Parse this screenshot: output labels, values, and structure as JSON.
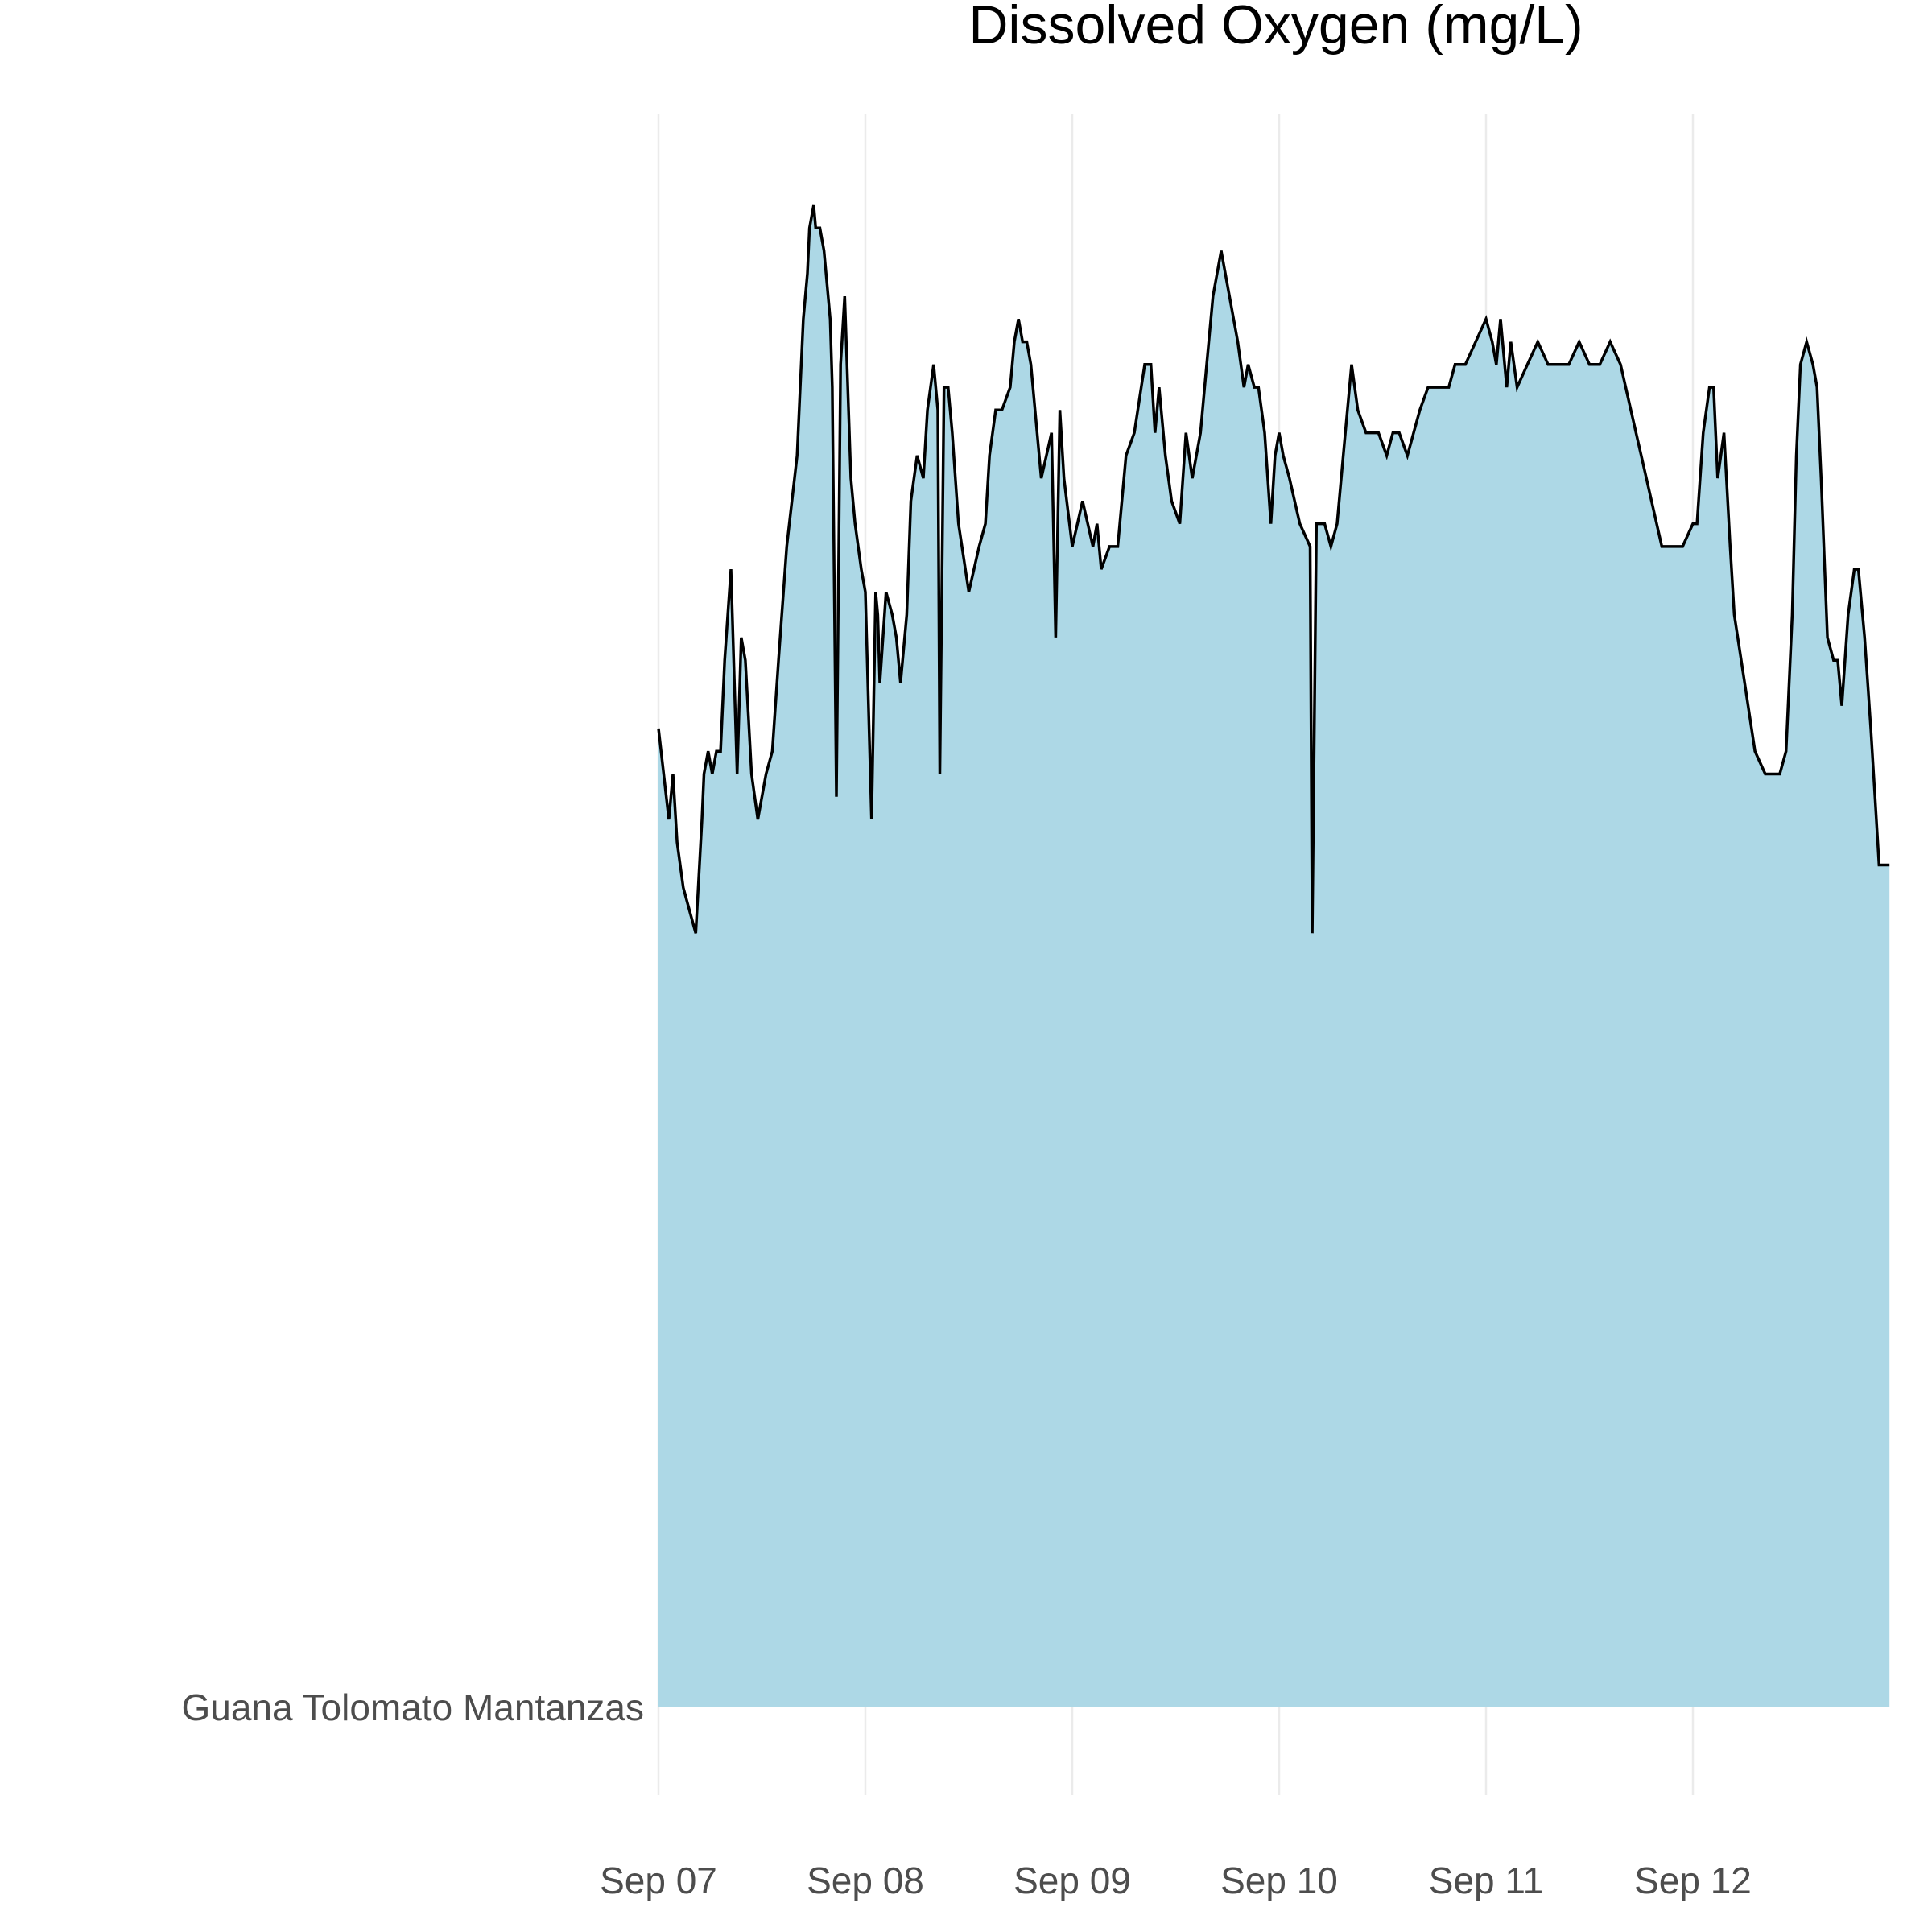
{
  "chart_data": {
    "type": "area",
    "title": "Dissolved Oxygen (mg/L)",
    "subtitle": "",
    "xlabel": "",
    "ylabel": "",
    "y_category_label": "Guana Tolomato Mantanzas",
    "x_tick_labels": [
      "Sep 07",
      "Sep 08",
      "Sep 09",
      "Sep 10",
      "Sep 11",
      "Sep 12"
    ],
    "x_units": "days",
    "xlim_days": [
      0,
      5.95
    ],
    "y_scale": "relative ridgeline (no y-axis values printed)",
    "ylim": [
      0,
      7
    ],
    "grid": "vertical major gridlines only",
    "fill_color": "#add8e6",
    "line_color": "#000000",
    "grid_color": "#ebebeb",
    "title_color": "#000000",
    "tick_label_color": "#4d4d4d",
    "series": [
      {
        "x": [
          0.0,
          0.05,
          0.07,
          0.09,
          0.12,
          0.15,
          0.18,
          0.21,
          0.22,
          0.24,
          0.26,
          0.28,
          0.3,
          0.32,
          0.35,
          0.38,
          0.4,
          0.42,
          0.45,
          0.48,
          0.5,
          0.52,
          0.55,
          0.58,
          0.62,
          0.67,
          0.7,
          0.72,
          0.73,
          0.75,
          0.76,
          0.78,
          0.8,
          0.83,
          0.84,
          0.86,
          0.88,
          0.9,
          0.93,
          0.95,
          0.98,
          1.0,
          1.03,
          1.05,
          1.06,
          1.07,
          1.1,
          1.13,
          1.15,
          1.17,
          1.2,
          1.22,
          1.25,
          1.28,
          1.3,
          1.33,
          1.35,
          1.36,
          1.38,
          1.4,
          1.42,
          1.45,
          1.5,
          1.55,
          1.58,
          1.6,
          1.63,
          1.66,
          1.7,
          1.72,
          1.74,
          1.76,
          1.78,
          1.8,
          1.85,
          1.9,
          1.92,
          1.94,
          1.96,
          2.0,
          2.05,
          2.1,
          2.12,
          2.14,
          2.18,
          2.22,
          2.26,
          2.3,
          2.35,
          2.38,
          2.4,
          2.42,
          2.45,
          2.48,
          2.52,
          2.55,
          2.58,
          2.62,
          2.65,
          2.68,
          2.72,
          2.76,
          2.8,
          2.83,
          2.85,
          2.88,
          2.9,
          2.93,
          2.96,
          2.98,
          3.0,
          3.02,
          3.05,
          3.1,
          3.15,
          3.16,
          3.18,
          3.22,
          3.25,
          3.28,
          3.32,
          3.35,
          3.38,
          3.42,
          3.48,
          3.52,
          3.55,
          3.58,
          3.62,
          3.68,
          3.72,
          3.78,
          3.82,
          3.85,
          3.9,
          4.0,
          4.03,
          4.05,
          4.07,
          4.1,
          4.12,
          4.15,
          4.2,
          4.25,
          4.3,
          4.35,
          4.4,
          4.45,
          4.5,
          4.55,
          4.6,
          4.65,
          4.7,
          4.75,
          4.8,
          4.85,
          4.9,
          4.95,
          5.0,
          5.02,
          5.05,
          5.08,
          5.1,
          5.12,
          5.15,
          5.18,
          5.2,
          5.25,
          5.3,
          5.35,
          5.4,
          5.42,
          5.45,
          5.48,
          5.5,
          5.52,
          5.55,
          5.58,
          5.6,
          5.62,
          5.65,
          5.68,
          5.7,
          5.72,
          5.75,
          5.78,
          5.8,
          5.83,
          5.86,
          5.88,
          5.9,
          5.95
        ],
        "y": [
          4.3,
          3.9,
          4.1,
          3.8,
          3.6,
          3.5,
          3.4,
          3.9,
          4.1,
          4.2,
          4.1,
          4.2,
          4.2,
          4.6,
          5.0,
          4.1,
          4.7,
          4.6,
          4.1,
          3.9,
          4.0,
          4.1,
          4.2,
          4.6,
          5.1,
          5.5,
          6.1,
          6.3,
          6.5,
          6.6,
          6.5,
          6.5,
          6.4,
          6.1,
          5.8,
          4.0,
          5.9,
          6.2,
          5.4,
          5.2,
          5.0,
          4.9,
          3.9,
          4.9,
          4.8,
          4.5,
          4.9,
          4.8,
          4.7,
          4.5,
          4.8,
          5.3,
          5.5,
          5.4,
          5.7,
          5.9,
          5.7,
          4.1,
          5.8,
          5.8,
          5.6,
          5.2,
          4.9,
          5.1,
          5.2,
          5.5,
          5.7,
          5.7,
          5.8,
          6.0,
          6.1,
          6.0,
          6.0,
          5.9,
          5.4,
          5.6,
          4.7,
          5.7,
          5.4,
          5.1,
          5.3,
          5.1,
          5.2,
          5.0,
          5.1,
          5.1,
          5.5,
          5.6,
          5.9,
          5.9,
          5.6,
          5.8,
          5.5,
          5.3,
          5.2,
          5.6,
          5.4,
          5.6,
          5.9,
          6.2,
          6.4,
          6.2,
          6.0,
          5.8,
          5.9,
          5.8,
          5.8,
          5.6,
          5.2,
          5.5,
          5.6,
          5.5,
          5.4,
          5.2,
          5.1,
          3.4,
          5.2,
          5.2,
          5.1,
          5.2,
          5.6,
          5.9,
          5.7,
          5.6,
          5.6,
          5.5,
          5.6,
          5.6,
          5.5,
          5.7,
          5.8,
          5.8,
          5.8,
          5.9,
          5.9,
          6.1,
          6.0,
          5.9,
          6.1,
          5.8,
          6.0,
          5.8,
          5.9,
          6.0,
          5.9,
          5.9,
          5.9,
          6.0,
          5.9,
          5.9,
          6.0,
          5.9,
          5.7,
          5.5,
          5.3,
          5.1,
          5.1,
          5.1,
          5.2,
          5.2,
          5.6,
          5.8,
          5.8,
          5.4,
          5.6,
          5.1,
          4.8,
          4.5,
          4.2,
          4.1,
          4.1,
          4.1,
          4.2,
          4.8,
          5.5,
          5.9,
          6.0,
          5.9,
          5.8,
          5.4,
          4.7,
          4.6,
          4.6,
          4.4,
          4.8,
          5.0,
          5.0,
          4.7,
          4.3,
          4.0,
          3.7,
          3.7
        ]
      }
    ]
  }
}
